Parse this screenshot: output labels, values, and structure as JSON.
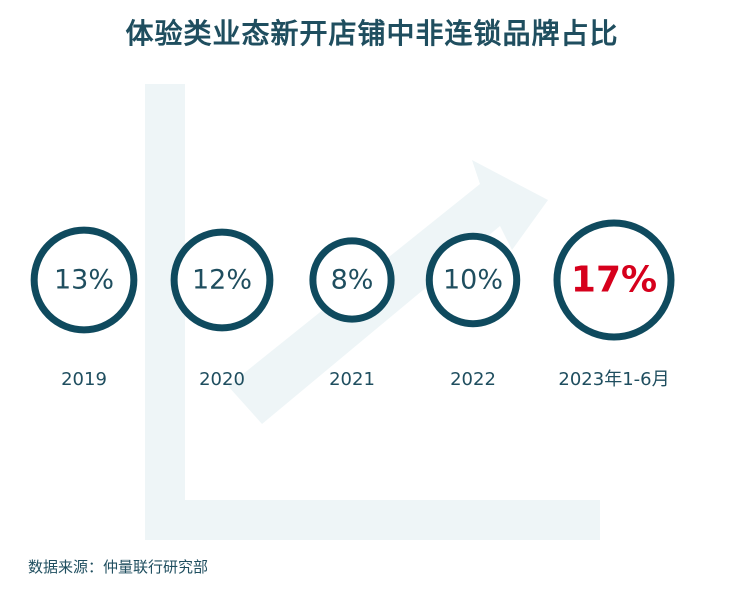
{
  "chart_data": {
    "type": "bubble",
    "title": "体验类业态新开店铺中非连锁品牌占比",
    "categories": [
      "2019",
      "2020",
      "2021",
      "2022",
      "2023年1-6月"
    ],
    "values": [
      13,
      12,
      8,
      10,
      17
    ],
    "value_labels": [
      "13%",
      "12%",
      "8%",
      "10%",
      "17%"
    ],
    "highlight_index": 4
  },
  "source": "数据来源：仲量联行研究部",
  "colors": {
    "circle_stroke": "#0f4a5e",
    "value_text": "#1f4e5f",
    "highlight_text": "#d6001c",
    "background_arrow": "#eef5f7"
  }
}
